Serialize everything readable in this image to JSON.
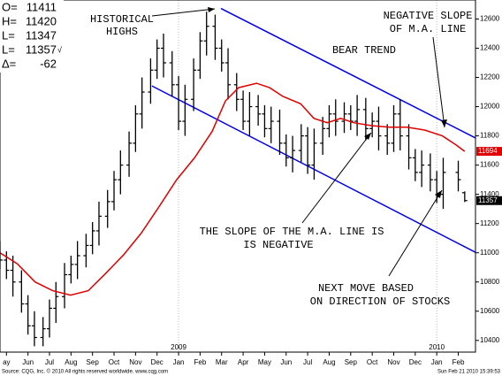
{
  "chart_data": {
    "type": "ohlc",
    "quote": {
      "labels": [
        "O=",
        "H=",
        "L=",
        "L=",
        "Δ="
      ],
      "check": "√",
      "change": -62
    },
    "xlim": [
      -0.3,
      21.8
    ],
    "ylim": [
      10320,
      12730
    ],
    "yticks": [
      10400,
      10600,
      10800,
      11000,
      11200,
      11400,
      11600,
      11800,
      12000,
      12200,
      12400,
      12600
    ],
    "xticks": [
      {
        "value": 0,
        "label": "ay"
      },
      {
        "value": 1,
        "label": "Jun"
      },
      {
        "value": 2,
        "label": "Jul"
      },
      {
        "value": 3,
        "label": "Aug"
      },
      {
        "value": 4,
        "label": "Sep"
      },
      {
        "value": 5,
        "label": "Oct"
      },
      {
        "value": 6,
        "label": "Nov"
      },
      {
        "value": 7,
        "label": "Dec"
      },
      {
        "value": 8,
        "label": "Jan"
      },
      {
        "value": 9,
        "label": "Feb"
      },
      {
        "value": 10,
        "label": "Mar"
      },
      {
        "value": 11,
        "label": "Apr"
      },
      {
        "value": 12,
        "label": "May"
      },
      {
        "value": 13,
        "label": "Jun"
      },
      {
        "value": 14,
        "label": "Jul"
      },
      {
        "value": 15,
        "label": "Aug"
      },
      {
        "value": 16,
        "label": "Sep"
      },
      {
        "value": 17,
        "label": "Oct"
      },
      {
        "value": 18,
        "label": "Nov"
      },
      {
        "value": 19,
        "label": "Dec"
      },
      {
        "value": 20,
        "label": "Jan"
      },
      {
        "value": 21,
        "label": "Feb"
      }
    ],
    "year_ticks": [
      {
        "value": 8,
        "label": "2009"
      },
      {
        "value": 20,
        "label": "2010"
      }
    ],
    "ohlc": {
      "color": "#000000",
      "x": [
        -0.3,
        0,
        0.3,
        0.7,
        1,
        1.3,
        1.7,
        2,
        2.3,
        2.7,
        3,
        3.3,
        3.7,
        4,
        4.3,
        4.7,
        5,
        5.3,
        5.7,
        6,
        6.3,
        6.7,
        7,
        7.3,
        7.7,
        8,
        8.3,
        8.7,
        9,
        9.3,
        9.7,
        10,
        10.3,
        10.7,
        11,
        11.3,
        11.7,
        12,
        12.3,
        12.7,
        13,
        13.3,
        13.7,
        14,
        14.3,
        14.7,
        15,
        15.3,
        15.7,
        16,
        16.3,
        16.7,
        17,
        17.3,
        17.7,
        18,
        18.3,
        18.7,
        19,
        19.3,
        19.7,
        20,
        20.3,
        21,
        21.3
      ],
      "open": [
        11000,
        10950,
        10880,
        10800,
        10650,
        10500,
        10420,
        10480,
        10620,
        10700,
        10850,
        10920,
        10980,
        11050,
        11150,
        11250,
        11350,
        11500,
        11600,
        11750,
        11950,
        12100,
        12250,
        12400,
        12300,
        12150,
        11900,
        12050,
        12250,
        12450,
        12550,
        12400,
        12300,
        12150,
        12050,
        11900,
        12000,
        11950,
        11850,
        11900,
        11750,
        11650,
        11700,
        11800,
        11600,
        11750,
        11850,
        11950,
        11900,
        11950,
        11900,
        11980,
        11850,
        11900,
        11800,
        11750,
        11950,
        11800,
        11650,
        11550,
        11600,
        11500,
        11400,
        11550,
        11411
      ],
      "high": [
        11080,
        11010,
        10980,
        10880,
        10710,
        10600,
        10560,
        10680,
        10800,
        10930,
        10980,
        11080,
        11130,
        11210,
        11350,
        11430,
        11560,
        11700,
        11830,
        12010,
        12200,
        12330,
        12460,
        12500,
        12380,
        12210,
        12150,
        12330,
        12510,
        12650,
        12630,
        12460,
        12400,
        12230,
        12110,
        12100,
        12080,
        12010,
        12000,
        11980,
        11810,
        11800,
        11880,
        11860,
        11850,
        11930,
        12010,
        12050,
        12030,
        12010,
        12080,
        12060,
        11960,
        12000,
        11880,
        12010,
        12050,
        11880,
        11710,
        11700,
        11680,
        11560,
        11650,
        11630,
        11420
      ],
      "low": [
        10890,
        10820,
        10700,
        10590,
        10440,
        10360,
        10360,
        10420,
        10520,
        10620,
        10790,
        10820,
        10900,
        10990,
        11050,
        11170,
        11290,
        11400,
        11520,
        11690,
        11850,
        12020,
        12190,
        12200,
        12070,
        11840,
        11800,
        11970,
        12190,
        12350,
        12320,
        12240,
        12050,
        11970,
        11840,
        11800,
        11870,
        11790,
        11750,
        11670,
        11590,
        11550,
        11620,
        11540,
        11500,
        11670,
        11790,
        11800,
        11820,
        11840,
        11800,
        11770,
        11790,
        11700,
        11670,
        11690,
        11700,
        11570,
        11490,
        11450,
        11420,
        11340,
        11300,
        11420,
        11347
      ],
      "close": [
        10950,
        10880,
        10800,
        10650,
        10500,
        10420,
        10480,
        10620,
        10700,
        10850,
        10920,
        10980,
        11050,
        11150,
        11250,
        11350,
        11500,
        11600,
        11750,
        11950,
        12100,
        12250,
        12400,
        12300,
        12150,
        11900,
        12050,
        12250,
        12450,
        12550,
        12400,
        12300,
        12150,
        12050,
        11900,
        12000,
        11950,
        11850,
        11900,
        11750,
        11650,
        11700,
        11800,
        11600,
        11750,
        11850,
        11950,
        11900,
        11950,
        11900,
        11980,
        11850,
        11900,
        11800,
        11750,
        11950,
        11800,
        11650,
        11550,
        11600,
        11500,
        11400,
        11550,
        11500,
        11357
      ]
    },
    "ma": {
      "color": "#e00000",
      "x": [
        -0.3,
        0.5,
        1.33,
        2.15,
        2.98,
        3.8,
        4.62,
        5.44,
        6.27,
        7.09,
        7.91,
        8.74,
        9.56,
        10.18,
        10.79,
        11.62,
        12.23,
        12.85,
        13.67,
        14.29,
        14.91,
        15.53,
        16.14,
        16.96,
        17.79,
        18.61,
        19.44,
        20.26,
        20.88,
        21.3
      ],
      "values": [
        11000,
        10925,
        10800,
        10740,
        10710,
        10740,
        10860,
        10985,
        11135,
        11315,
        11500,
        11650,
        11830,
        12040,
        12130,
        12160,
        12130,
        12070,
        12020,
        11920,
        11890,
        11920,
        11890,
        11870,
        11860,
        11860,
        11840,
        11800,
        11740,
        11694
      ]
    },
    "trendlines": [
      {
        "color": "#0000ee",
        "x": [
          9.97,
          21.8
        ],
        "y": [
          12672,
          11786
        ]
      },
      {
        "color": "#0000ee",
        "x": [
          6.76,
          21.8
        ],
        "y": [
          12142,
          11003
        ]
      }
    ],
    "annotations": [
      {
        "lines": [
          "HISTORICAL",
          "HIGHS"
        ]
      },
      {
        "lines": [
          "BEAR TREND"
        ]
      },
      {
        "lines": [
          "NEGATIVE SLOPE",
          "OF M.A. LINE"
        ]
      },
      {
        "lines": [
          "THE  SLOPE OF THE M.A. LINE IS",
          "IS NEGATIVE"
        ]
      },
      {
        "lines": [
          "NEXT MOVE BASED",
          "ON DIRECTION OF STOCKS"
        ]
      }
    ],
    "source": "Source: CQG, Inc. © 2010 All rights reserved worldwide. www.cqg.com",
    "timestamp": "Sun Feb 21 2010 15:39:53"
  }
}
